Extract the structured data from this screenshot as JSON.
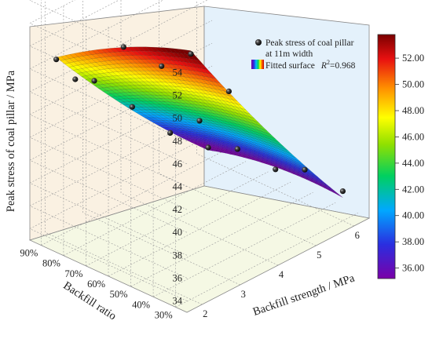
{
  "chart_data": {
    "type": "surface3d",
    "zlabel": "Peak stress of coal pillar / MPa",
    "xlabel": "Backfill strength / MPa",
    "ylabel": "Backfill ratio",
    "x_ticks": [
      "2",
      "3",
      "4",
      "5",
      "6"
    ],
    "y_ticks": [
      "30%",
      "40%",
      "50%",
      "60%",
      "70%",
      "80%",
      "90%"
    ],
    "z_ticks": [
      "34",
      "36",
      "38",
      "40",
      "42",
      "44",
      "46",
      "48",
      "50",
      "52",
      "54"
    ],
    "xlim": [
      1.6,
      6.4
    ],
    "ylim": [
      25,
      95
    ],
    "zlim": [
      33,
      55
    ],
    "legend": {
      "points_label_line1": "Peak stress of coal pillar",
      "points_label_line2": "at 11m width",
      "surface_label": "Fitted surface",
      "r2_symbol": "R",
      "r2_exponent": "2",
      "r2_value": "=0.968"
    },
    "colorbar": {
      "ticks": [
        "52.00",
        "50.00",
        "48.00",
        "46.00",
        "44.00",
        "42.00",
        "40.00",
        "38.00",
        "36.00"
      ],
      "range": [
        35.2,
        53.8
      ]
    },
    "points": [
      {
        "x": 2,
        "y": 30,
        "z": 54.5
      },
      {
        "x": 2,
        "y": 60,
        "z": 52.4
      },
      {
        "x": 2,
        "y": 90,
        "z": 48.6
      },
      {
        "x": 2.5,
        "y": 90,
        "z": 46.0
      },
      {
        "x": 3,
        "y": 90,
        "z": 45.0
      },
      {
        "x": 3,
        "y": 60,
        "z": 49.0
      },
      {
        "x": 3,
        "y": 30,
        "z": 49.5
      },
      {
        "x": 4,
        "y": 90,
        "z": 41.0
      },
      {
        "x": 4,
        "y": 60,
        "z": 42.5
      },
      {
        "x": 5,
        "y": 90,
        "z": 37.0
      },
      {
        "x": 5,
        "y": 60,
        "z": 38.3
      },
      {
        "x": 5,
        "y": 30,
        "z": 39.2
      },
      {
        "x": 6,
        "y": 90,
        "z": 34.0
      },
      {
        "x": 6,
        "y": 60,
        "z": 34.8
      },
      {
        "x": 6,
        "y": 30,
        "z": 35.6
      }
    ]
  }
}
